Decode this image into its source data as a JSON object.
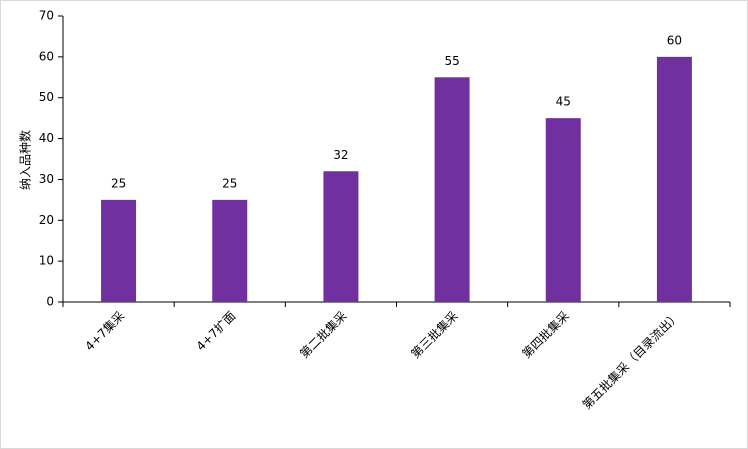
{
  "chart_data": {
    "type": "bar",
    "y_label": "纳入品种数",
    "categories": [
      "4+7集采",
      "4+7扩面",
      "第二批集采",
      "第三批集采",
      "第四批集采",
      "第五批集采（目录流出）"
    ],
    "values": [
      25,
      25,
      32,
      55,
      45,
      60
    ],
    "color": "#7030a0",
    "ylim": [
      0,
      70
    ],
    "yticks": [
      0,
      10,
      20,
      30,
      40,
      50,
      60,
      70
    ],
    "grid": false,
    "data_labels": true
  }
}
